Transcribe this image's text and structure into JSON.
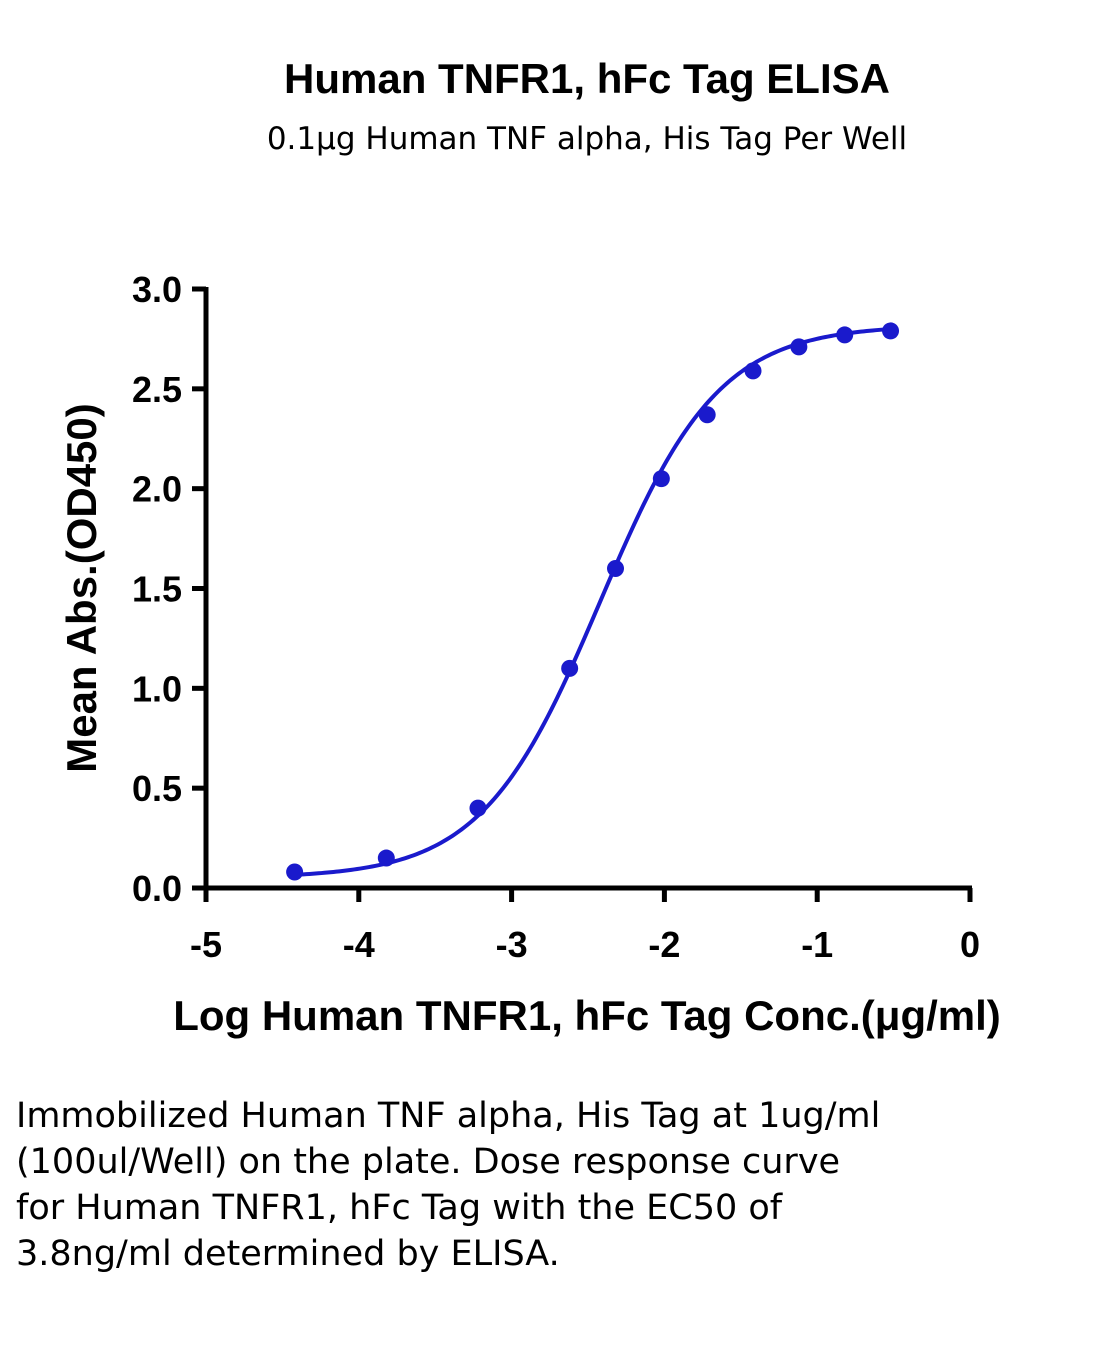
{
  "chart_data": {
    "type": "scatter",
    "title": "Human TNFR1, hFc Tag ELISA",
    "subtitle": "0.1μg Human TNF alpha, His Tag Per Well",
    "xlabel": "Log Human TNFR1, hFc Tag Conc.(μg/ml)",
    "ylabel": "Mean Abs.(OD450)",
    "xlim": [
      -5,
      0
    ],
    "ylim": [
      0,
      3.0
    ],
    "x_ticks": [
      "-5",
      "-4",
      "-3",
      "-2",
      "-1",
      "0"
    ],
    "y_ticks": [
      "0.0",
      "0.5",
      "1.0",
      "1.5",
      "2.0",
      "2.5",
      "3.0"
    ],
    "grid": false,
    "legend": "none",
    "color": "#1a1acc",
    "fit": "four-parameter logistic",
    "fit_params": {
      "bottom": 0.05,
      "top": 2.82,
      "log_ec50": -2.42,
      "hill": 1.12
    },
    "series": [
      {
        "x": [
          -4.42,
          -3.82,
          -3.22,
          -2.62,
          -2.32,
          -2.02,
          -1.72,
          -1.42,
          -1.12,
          -0.82,
          -0.52
        ],
        "y": [
          0.08,
          0.15,
          0.4,
          1.1,
          1.6,
          2.05,
          2.37,
          2.59,
          2.71,
          2.77,
          2.79
        ]
      }
    ]
  },
  "caption": "Immobilized Human TNF alpha, His Tag at 1ug/ml (100ul/Well) on the plate. Dose response curve for Human TNFR1, hFc Tag with the EC50 of 3.8ng/ml determined by ELISA."
}
